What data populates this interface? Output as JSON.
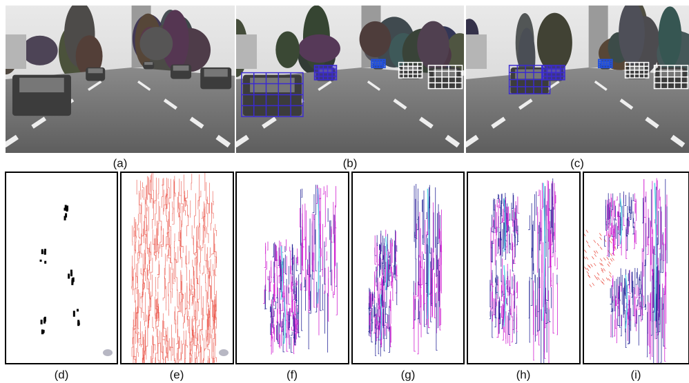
{
  "captions": [
    "(a)",
    "(b)",
    "(c)",
    "(d)",
    "(e)",
    "(f)",
    "(g)",
    "(h)",
    "(i)"
  ]
}
